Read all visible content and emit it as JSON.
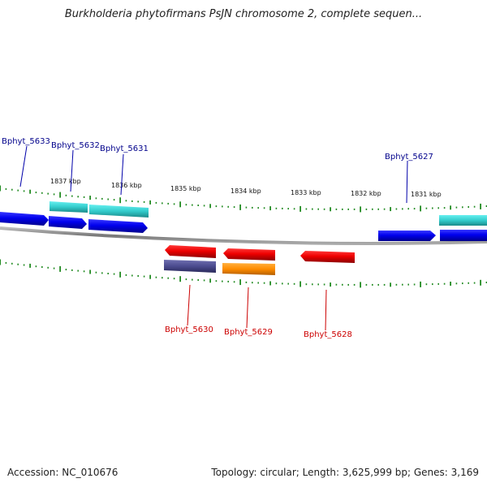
{
  "header": {
    "title": "Burkholderia phytofirmans PsJN chromosome 2, complete sequen..."
  },
  "scale": {
    "ticks": [
      "1837 kbp",
      "1836 kbp",
      "1835 kbp",
      "1834 kbp",
      "1833 kbp",
      "1832 kbp",
      "1831 kbp"
    ]
  },
  "genes": [
    {
      "label": "Bphyt_5633",
      "strand": "+",
      "color": "#0000ee"
    },
    {
      "label": "Bphyt_5632",
      "strand": "+",
      "color": "#0000ee"
    },
    {
      "label": "Bphyt_5631",
      "strand": "+",
      "color": "#0000ee"
    },
    {
      "label": "Bphyt_5630",
      "strand": "-",
      "color": "#ee0000"
    },
    {
      "label": "Bphyt_5629",
      "strand": "-",
      "color": "#ee0000"
    },
    {
      "label": "Bphyt_5628",
      "strand": "-",
      "color": "#ee0000"
    },
    {
      "label": "Bphyt_5627",
      "strand": "+",
      "color": "#0000ee"
    }
  ],
  "colors": {
    "forward_gene": "#0000ee",
    "reverse_gene": "#ee0000",
    "forward_label": "#00008b",
    "reverse_label": "#cc0000",
    "cds_forward": "#33cccc",
    "cds_reverse_purple": "#4b4b8f",
    "cds_reverse_orange": "#ff8c00",
    "backbone": "#888888",
    "tick": "#228b22"
  },
  "footer": {
    "accession": "Accession: NC_010676",
    "summary": "Topology: circular; Length: 3,625,999 bp; Genes: 3,169"
  }
}
